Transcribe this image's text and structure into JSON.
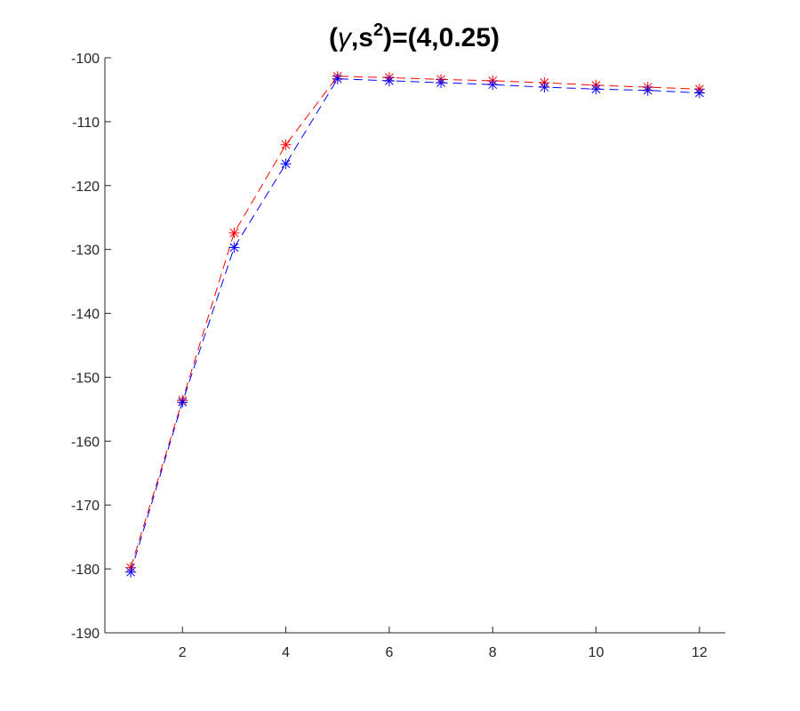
{
  "chart_data": {
    "type": "line",
    "title": {
      "open": "(",
      "symbol": "γ",
      "mid": ",s",
      "sup": "2",
      "close": ")=(4,0.25)"
    },
    "xlabel": "",
    "ylabel": "",
    "xlim": [
      0.5,
      12.5
    ],
    "ylim": [
      -190,
      -100
    ],
    "xticks": [
      2,
      4,
      6,
      8,
      10,
      12
    ],
    "yticks": [
      -190,
      -180,
      -170,
      -160,
      -150,
      -140,
      -130,
      -120,
      -110,
      -100
    ],
    "x": [
      1,
      2,
      3,
      4,
      5,
      6,
      7,
      8,
      9,
      10,
      11,
      12
    ],
    "series": [
      {
        "color": "#ff0000",
        "values": [
          -179.8,
          -153.6,
          -127.4,
          -113.6,
          -102.9,
          -103.1,
          -103.4,
          -103.6,
          -103.9,
          -104.3,
          -104.6,
          -104.9
        ]
      },
      {
        "color": "#0000ff",
        "values": [
          -180.5,
          -153.9,
          -129.7,
          -116.6,
          -103.3,
          -103.6,
          -103.9,
          -104.2,
          -104.6,
          -104.9,
          -105.1,
          -105.5
        ]
      }
    ],
    "grid": false,
    "marker": "asterisk",
    "line_style": "dashed"
  }
}
